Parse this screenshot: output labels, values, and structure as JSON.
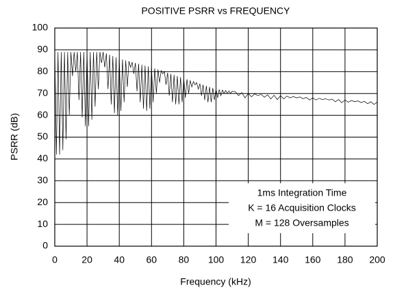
{
  "chart_data": {
    "type": "line",
    "title": "POSITIVE PSRR vs FREQUENCY",
    "x_label": "Frequency (kHz)",
    "y_label": "PSRR (dB)",
    "annotations": [
      "1ms Integration Time",
      "K = 16 Acquisition Clocks",
      "M = 128 Oversamples"
    ],
    "xlim": [
      0,
      200
    ],
    "ylim": [
      0,
      100
    ],
    "xticks": [
      0,
      20,
      40,
      60,
      80,
      100,
      120,
      140,
      160,
      180,
      200
    ],
    "yticks": [
      0,
      10,
      20,
      30,
      40,
      50,
      60,
      70,
      80,
      90,
      100
    ],
    "grid": true,
    "x": [
      0,
      1,
      2,
      3,
      4,
      5,
      6,
      7,
      8,
      9,
      10,
      11,
      12,
      13,
      14,
      15,
      16,
      17,
      18,
      19,
      20,
      21,
      22,
      23,
      24,
      25,
      26,
      27,
      28,
      29,
      30,
      31,
      32,
      33,
      34,
      35,
      36,
      37,
      38,
      39,
      40,
      41,
      42,
      43,
      44,
      45,
      46,
      47,
      48,
      49,
      50,
      51,
      52,
      53,
      54,
      55,
      56,
      57,
      58,
      59,
      60,
      61,
      62,
      63,
      64,
      65,
      66,
      67,
      68,
      69,
      70,
      71,
      72,
      73,
      74,
      75,
      76,
      77,
      78,
      79,
      80,
      81,
      82,
      83,
      84,
      85,
      86,
      87,
      88,
      89,
      90,
      91,
      92,
      93,
      94,
      95,
      96,
      97,
      98,
      99,
      100,
      101,
      102,
      103,
      104,
      105,
      106,
      107,
      108,
      109,
      110,
      112,
      114,
      116,
      118,
      120,
      122,
      124,
      126,
      128,
      130,
      132,
      134,
      136,
      138,
      140,
      142,
      144,
      146,
      148,
      150,
      152,
      154,
      156,
      158,
      160,
      162,
      164,
      166,
      168,
      170,
      172,
      174,
      176,
      178,
      180,
      182,
      184,
      186,
      188,
      190,
      192,
      194,
      196,
      198,
      200
    ],
    "series": [
      {
        "color": "#000000",
        "values": [
          89,
          42,
          89,
          42,
          89,
          44,
          89,
          49,
          89,
          60,
          89,
          78,
          89,
          80,
          89,
          67,
          89,
          59,
          89,
          55,
          89,
          55,
          89,
          58,
          89,
          64,
          89,
          72,
          89,
          84,
          89,
          82,
          88.4,
          72,
          87.8,
          65,
          87.2,
          61,
          86.6,
          60,
          86,
          62,
          85.6,
          66,
          85.2,
          73,
          84.8,
          82,
          84.4,
          79,
          84,
          71,
          83.6,
          66,
          83.2,
          63,
          82.8,
          62,
          82.4,
          63,
          82,
          66,
          81.5,
          70,
          81,
          75,
          80.5,
          79,
          80,
          74,
          79.5,
          69,
          79,
          66,
          78.5,
          65,
          78,
          65,
          77.5,
          66,
          77,
          68,
          76.5,
          70,
          76,
          73,
          75.5,
          74,
          75,
          72,
          74.5,
          69,
          74,
          67,
          73.5,
          66,
          73,
          66,
          72.5,
          67,
          72,
          68,
          71.8,
          69,
          71.6,
          70,
          71.4,
          70,
          71.2,
          70,
          71,
          70.8,
          69,
          70.4,
          68,
          70,
          68.5,
          69.8,
          69,
          69.6,
          68.3,
          69.4,
          67.5,
          69.2,
          67.2,
          69,
          67.5,
          68.8,
          68,
          68.6,
          68,
          68.4,
          67.6,
          68.2,
          67,
          68,
          67,
          67.8,
          67.2,
          67.6,
          67,
          67.4,
          66.2,
          67.2,
          65.8,
          67,
          66,
          66.8,
          66.2,
          66.6,
          65.8,
          66.4,
          65.3,
          66.2,
          65,
          66
        ]
      }
    ]
  }
}
